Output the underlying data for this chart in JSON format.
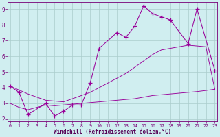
{
  "line1_x": [
    0,
    1,
    2,
    4,
    5,
    6,
    7,
    8,
    9,
    10,
    12,
    13,
    14,
    15,
    16,
    17,
    18,
    20,
    21,
    23
  ],
  "line1_y": [
    4.1,
    3.7,
    2.3,
    3.0,
    2.2,
    2.5,
    2.9,
    2.9,
    4.3,
    6.5,
    7.5,
    7.2,
    7.9,
    9.2,
    8.7,
    8.5,
    8.3,
    6.8,
    9.0,
    5.1
  ],
  "line2_x": [
    0,
    1,
    2,
    3,
    4,
    5,
    6,
    7,
    8,
    9,
    10,
    11,
    12,
    13,
    14,
    15,
    16,
    17,
    18,
    19,
    20,
    21,
    22,
    23
  ],
  "line2_y": [
    4.1,
    3.85,
    3.6,
    3.4,
    3.2,
    3.15,
    3.1,
    3.3,
    3.5,
    3.7,
    4.0,
    4.3,
    4.6,
    4.9,
    5.3,
    5.7,
    6.1,
    6.4,
    6.5,
    6.6,
    6.7,
    6.65,
    6.6,
    3.9
  ],
  "line3_x": [
    0,
    1,
    2,
    3,
    4,
    5,
    6,
    7,
    8,
    9,
    10,
    11,
    12,
    13,
    14,
    15,
    16,
    17,
    18,
    19,
    20,
    21,
    22,
    23
  ],
  "line3_y": [
    3.0,
    2.75,
    2.6,
    2.75,
    2.9,
    2.85,
    2.9,
    2.95,
    3.0,
    3.05,
    3.1,
    3.15,
    3.2,
    3.25,
    3.3,
    3.4,
    3.5,
    3.55,
    3.6,
    3.65,
    3.7,
    3.75,
    3.82,
    3.9
  ],
  "color": "#990099",
  "bg_color": "#d0eef0",
  "grid_color": "#aacccc",
  "xlabel": "Windchill (Refroidissement éolien,°C)",
  "xlim": [
    -0.3,
    23.3
  ],
  "ylim": [
    1.85,
    9.45
  ],
  "yticks": [
    2,
    3,
    4,
    5,
    6,
    7,
    8,
    9
  ],
  "xticks": [
    0,
    1,
    2,
    3,
    4,
    5,
    6,
    7,
    8,
    9,
    10,
    11,
    12,
    13,
    14,
    15,
    16,
    17,
    18,
    19,
    20,
    21,
    22,
    23
  ],
  "tick_color": "#770077",
  "label_color": "#550055"
}
